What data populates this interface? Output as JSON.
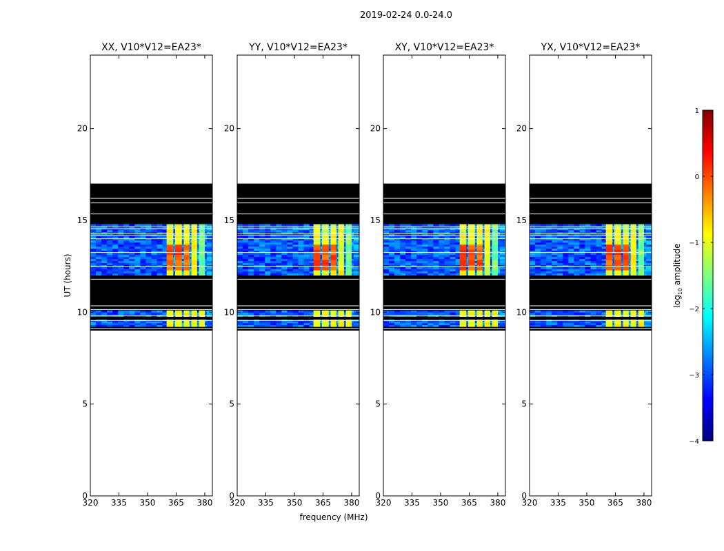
{
  "figure": {
    "suptitle": "2019-02-24 0.0-24.0",
    "xlabel": "frequency (MHz)",
    "ylabel": "UT (hours)"
  },
  "colorbar": {
    "label_prefix": "log",
    "label_sub": "10",
    "label_suffix": " amplitude",
    "ticks": [
      "1",
      "0",
      "−1",
      "−2",
      "−3",
      "−4"
    ],
    "tick_values": [
      1,
      0,
      -1,
      -2,
      -3,
      -4
    ],
    "range": [
      -4,
      1
    ],
    "colors": [
      "#00007f",
      "#0000ff",
      "#007fff",
      "#00ffff",
      "#7fff7f",
      "#ffff00",
      "#ff7f00",
      "#ff0000",
      "#7f0000"
    ]
  },
  "chart_data": {
    "type": "heatmap",
    "xlim": [
      320,
      384
    ],
    "ylim": [
      0,
      24
    ],
    "xticks": [
      320,
      335,
      350,
      365,
      380
    ],
    "yticks": [
      0,
      5,
      10,
      15,
      20
    ],
    "panels": [
      {
        "title": "XX, V10*V12=EA23*"
      },
      {
        "title": "YY, V10*V12=EA23*"
      },
      {
        "title": "XY, V10*V12=EA23*"
      },
      {
        "title": "YX, V10*V12=EA23*"
      }
    ],
    "data_coverage_hours": [
      9.0,
      17.0
    ],
    "rfi_band_mhz": [
      360,
      380
    ],
    "flag_color": "#000000"
  }
}
